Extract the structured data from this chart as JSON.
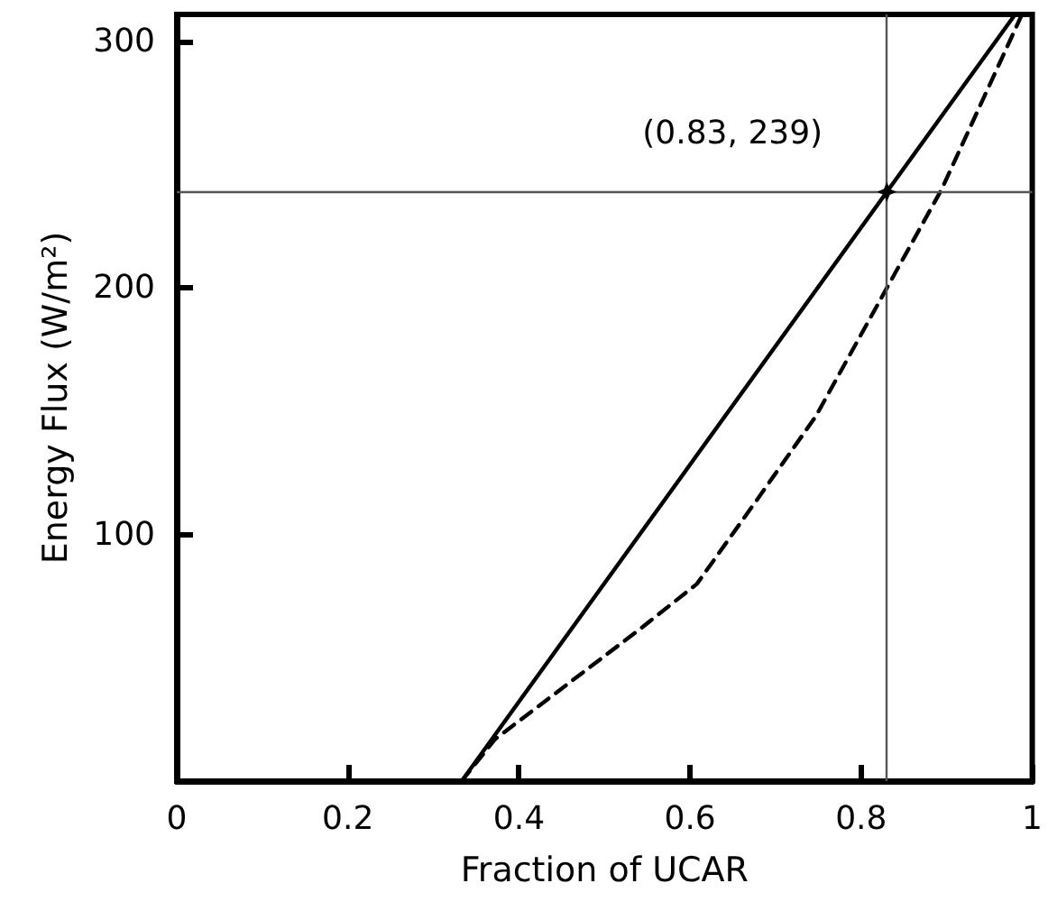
{
  "chart_data": {
    "type": "line",
    "xlabel": "Fraction of UCAR",
    "ylabel": "Energy Flux (W/m²)",
    "series": [
      {
        "color": "#000000",
        "line_style": "solid",
        "x": [
          0.333,
          0.83,
          0.98
        ],
        "values": [
          0,
          239,
          311
        ]
      },
      {
        "color": "#000000",
        "line_style": "dashed",
        "x": [
          0.333,
          0.372,
          0.539,
          0.608,
          0.678,
          0.747,
          0.83,
          0.894,
          0.988
        ],
        "values": [
          0,
          17,
          61,
          80,
          114,
          148,
          200,
          240,
          311
        ]
      }
    ],
    "xlim": [
      0,
      1
    ],
    "xticks": [
      0,
      0.2,
      0.4,
      0.6,
      0.8,
      1
    ],
    "ylim": [
      0,
      311
    ],
    "yticks": [
      100,
      200,
      300
    ],
    "ref_lines": [
      {
        "axis": "x",
        "value": 0.83,
        "color": "#555555"
      },
      {
        "axis": "y",
        "value": 239,
        "color": "#555555"
      }
    ],
    "annotations": [
      {
        "text": "(0.83, 239)",
        "x": 0.83,
        "y": 239
      }
    ],
    "marker": "none",
    "grid": false
  }
}
